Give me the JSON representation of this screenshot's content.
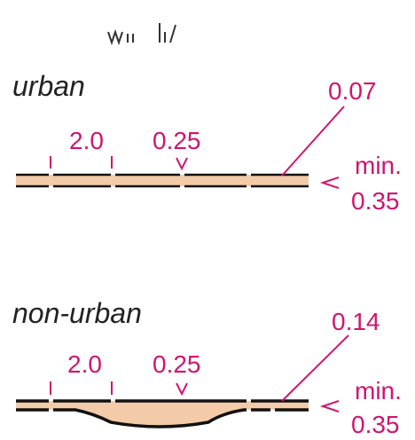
{
  "sections": [
    {
      "label": "urban",
      "width_label": "2.0",
      "slope_label": "0.25",
      "thickness_label": "0.07",
      "min_label": "min.",
      "min_value": "0.35"
    },
    {
      "label": "non-urban",
      "width_label": "2.0",
      "slope_label": "0.25",
      "thickness_label": "0.14",
      "min_label": "min.",
      "min_value": "0.35"
    }
  ]
}
